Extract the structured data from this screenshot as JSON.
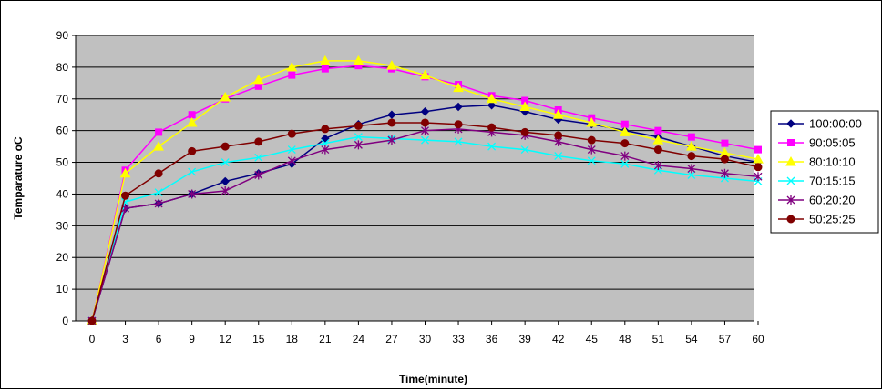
{
  "chart_data": {
    "type": "line",
    "title": "",
    "xlabel": "Time(minute)",
    "ylabel": "Temparature oC",
    "x": [
      0,
      3,
      6,
      9,
      12,
      15,
      18,
      21,
      24,
      27,
      30,
      33,
      36,
      39,
      42,
      45,
      48,
      51,
      54,
      57,
      60
    ],
    "xlim": [
      0,
      60
    ],
    "ylim": [
      0,
      90
    ],
    "yticks": [
      0,
      10,
      20,
      30,
      40,
      50,
      60,
      70,
      80,
      90
    ],
    "grid": true,
    "plot_background": "#c0c0c0",
    "legend_position": "right",
    "series": [
      {
        "name": "100:00:00",
        "color": "#000080",
        "marker": "diamond",
        "values": [
          0,
          35.5,
          37,
          40,
          44,
          46.5,
          49.5,
          57.5,
          62,
          65,
          66,
          67.5,
          68,
          66,
          63.5,
          62,
          60,
          58,
          55,
          52,
          50
        ]
      },
      {
        "name": "90:05:05",
        "color": "#ff00ff",
        "marker": "square",
        "values": [
          0,
          47.5,
          59.5,
          65,
          70,
          74,
          77.5,
          79.5,
          80.5,
          79.5,
          77,
          74.5,
          71,
          69.5,
          66.5,
          64,
          62,
          60,
          58,
          56,
          54
        ]
      },
      {
        "name": "80:10:10",
        "color": "#ffff00",
        "marker": "triangle",
        "values": [
          0,
          46.5,
          55,
          62.5,
          70.5,
          76,
          80,
          82,
          82,
          80.5,
          77.5,
          73.5,
          70,
          67.5,
          65,
          62.5,
          59.5,
          57,
          55,
          53,
          51
        ]
      },
      {
        "name": "70:15:15",
        "color": "#00ffff",
        "marker": "x",
        "values": [
          0,
          37.5,
          40.5,
          47,
          50,
          51.5,
          54,
          56,
          58,
          57.5,
          57,
          56.5,
          55,
          54,
          52,
          50.5,
          49.5,
          47.5,
          46,
          45,
          44
        ]
      },
      {
        "name": "60:20:20",
        "color": "#800080",
        "marker": "star",
        "values": [
          0,
          35.5,
          37,
          40,
          41,
          46,
          50.5,
          54,
          55.5,
          57,
          60,
          60.5,
          59.5,
          58.5,
          56.5,
          54,
          52,
          49,
          48,
          46.5,
          45.5
        ]
      },
      {
        "name": "50:25:25",
        "color": "#800000",
        "marker": "circle",
        "values": [
          0,
          39.5,
          46.5,
          53.5,
          55,
          56.5,
          59,
          60.5,
          61.5,
          62.5,
          62.5,
          62,
          61,
          59.5,
          58.5,
          57,
          56,
          54,
          52,
          51,
          48.5
        ]
      }
    ]
  }
}
